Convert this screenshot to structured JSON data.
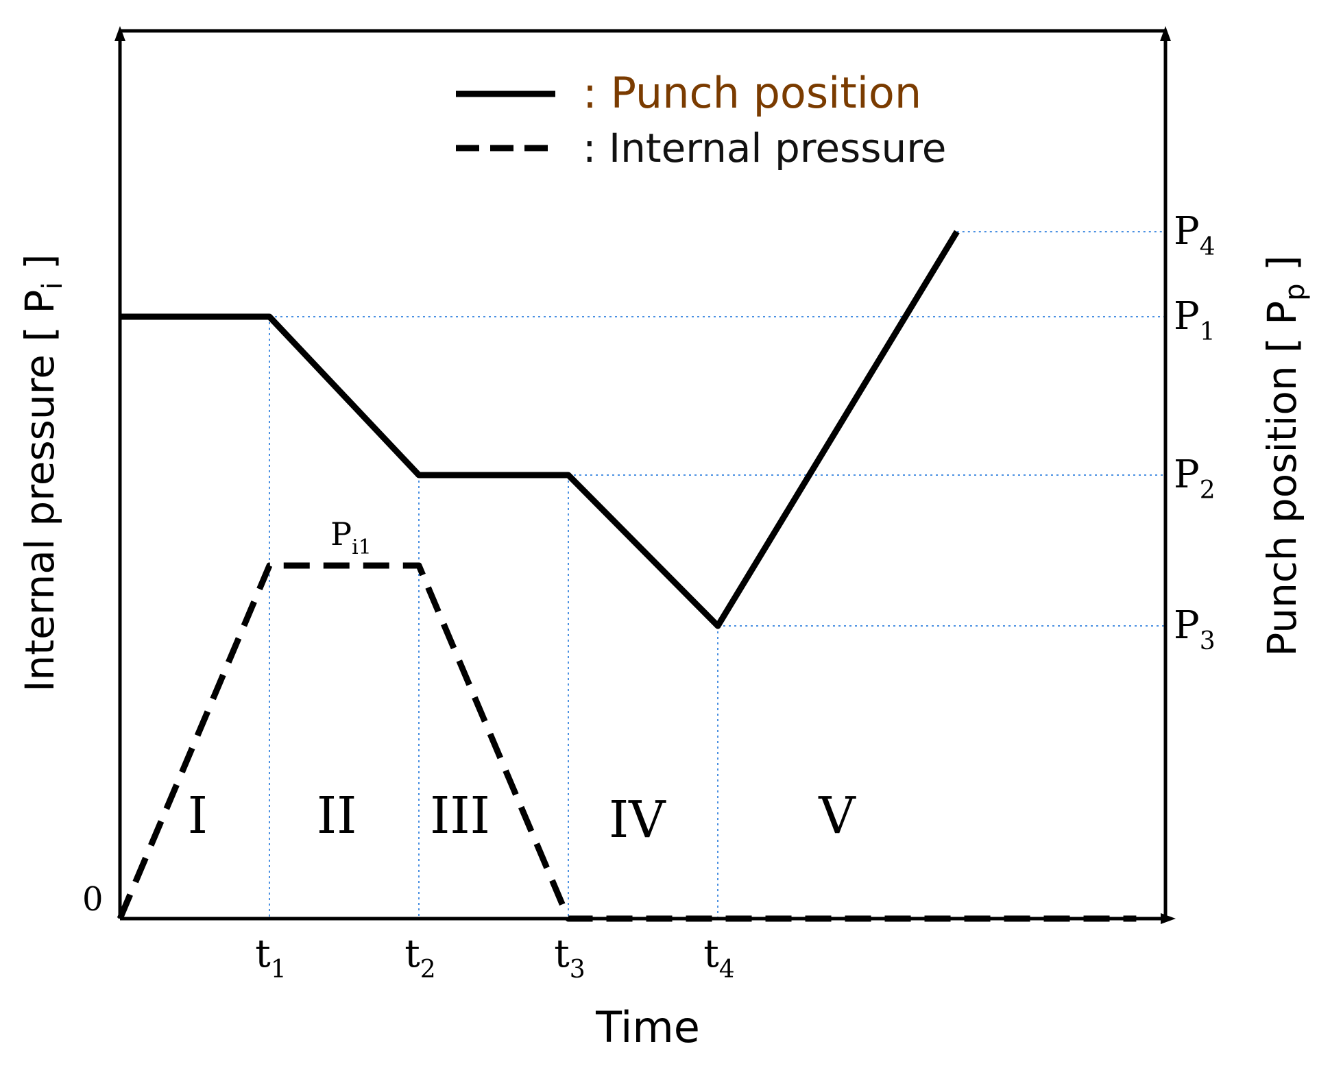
{
  "chart_data": {
    "type": "line",
    "xlabel": "Time",
    "ylabel_left": {
      "text": "Internal pressure [ P",
      "sub": "i",
      "close": " ]"
    },
    "ylabel_right": {
      "text": "Punch position [ P",
      "sub": "p",
      "close": " ]"
    },
    "origin_label": "0",
    "x_ticks": [
      {
        "base": "t",
        "sub": "1",
        "x": 1
      },
      {
        "base": "t",
        "sub": "2",
        "x": 2
      },
      {
        "base": "t",
        "sub": "3",
        "x": 3
      },
      {
        "base": "t",
        "sub": "4",
        "x": 4
      }
    ],
    "right_ticks": [
      {
        "base": "P",
        "sub": "4",
        "y": 4
      },
      {
        "base": "P",
        "sub": "1",
        "y": 3
      },
      {
        "base": "P",
        "sub": "2",
        "y": 2
      },
      {
        "base": "P",
        "sub": "3",
        "y": 1
      }
    ],
    "pressure_label": {
      "base": "P",
      "sub": "i1"
    },
    "stages": [
      {
        "label": "I",
        "from": 0,
        "to": 1
      },
      {
        "label": "II",
        "from": 1,
        "to": 2
      },
      {
        "label": "III",
        "from": 2,
        "to": 3
      },
      {
        "label": "IV",
        "from": 3,
        "to": 4
      },
      {
        "label": "V",
        "from": 4,
        "to": 6.1
      }
    ],
    "series": [
      {
        "name": "Punch position",
        "style": "solid",
        "x": [
          0,
          1,
          2,
          3,
          4,
          5.6
        ],
        "y": [
          3,
          3,
          2,
          2,
          1,
          4
        ]
      },
      {
        "name": "Internal pressure",
        "style": "dashed",
        "x": [
          0,
          1,
          2,
          3,
          4,
          6.8
        ],
        "y": [
          0,
          1,
          1,
          0,
          0,
          0
        ]
      }
    ],
    "grid": false,
    "guide_lines": "dotted",
    "legend": {
      "position": "top-center",
      "entries": [
        {
          "series": 0,
          "label": ": Punch position"
        },
        {
          "series": 1,
          "label": ": Internal pressure"
        }
      ]
    },
    "colors": {
      "line": "#000000",
      "guide": "#4a90e2",
      "legend_accent": "#7a3b00"
    }
  }
}
